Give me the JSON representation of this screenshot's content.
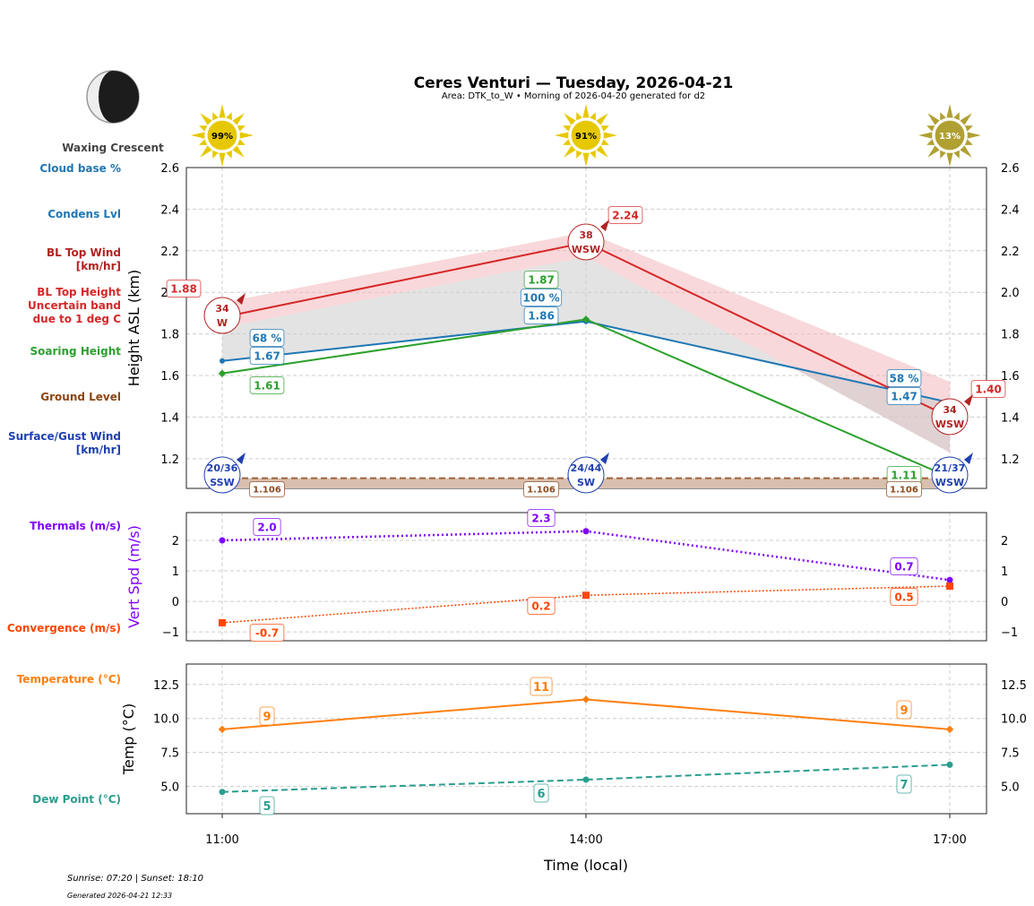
{
  "header": {
    "title": "Ceres Venturi — Tuesday, 2026-04-21",
    "subtitle": "Area: DTK_to_W • Morning of 2026-04-20 generated for d2",
    "moon_phase": "Waxing Crescent"
  },
  "suns": [
    {
      "time": "11:00",
      "label": "99%",
      "color": "#e6c800"
    },
    {
      "time": "14:00",
      "label": "91%",
      "color": "#e6c800"
    },
    {
      "time": "17:00",
      "label": "13%",
      "color": "#b0a032"
    }
  ],
  "left_labels": {
    "cloud_base": "Cloud base %",
    "condens": "Condens Lvl",
    "bl_wind": "BL Top Wind\n[km/hr]",
    "bl_height": "BL Top Height\nUncertain band\ndue to 1 deg C",
    "soaring": "Soaring Height",
    "ground": "Ground Level",
    "surface_wind": "Surface/Gust Wind\n[km/hr]",
    "thermals": "Thermals (m/s)",
    "convergence": "Convergence (m/s)",
    "temperature": "Temperature (°C)",
    "dewpoint": "Dew Point (°C)"
  },
  "footer": {
    "sun_times": "Sunrise: 07:20 | Sunset: 18:10",
    "generated": "Generated 2026-04-21 12:33"
  },
  "colors": {
    "bl_top": "#d62728",
    "band": "#f2b8bb",
    "condens": "#1f77b4",
    "soaring": "#2ca02c",
    "ground": "#8c4a1e",
    "surface_wind": "#1f3fb0",
    "thermals": "#7f00ff",
    "convergence": "#ff4500",
    "temperature": "#ff7f0e",
    "dewpoint": "#2a9d8f"
  },
  "chart_data": [
    {
      "type": "line",
      "ylabel": "Height ASL (km)",
      "ylim": [
        1.057,
        2.6
      ],
      "yticks": [
        "1.2",
        "1.4",
        "1.6",
        "1.8",
        "2.0",
        "2.2",
        "2.4",
        "2.6"
      ],
      "x": [
        "11:00",
        "14:00",
        "17:00"
      ],
      "grid": true,
      "series": [
        {
          "key": "bl_top",
          "values": [
            1.88,
            2.24,
            1.4
          ],
          "labels": [
            "1.88",
            "2.24",
            "1.40"
          ]
        },
        {
          "key": "band_upper",
          "values": [
            1.95,
            2.29,
            1.57
          ]
        },
        {
          "key": "band_lower",
          "values": [
            1.83,
            2.17,
            1.23
          ]
        },
        {
          "key": "condens",
          "values": [
            1.67,
            1.86,
            1.47
          ],
          "labels": [
            "1.67",
            "1.86",
            "1.47"
          ],
          "cloud_pct": [
            "68 %",
            "100 %",
            "58 %"
          ]
        },
        {
          "key": "soaring",
          "values": [
            1.61,
            1.87,
            1.11
          ],
          "labels": [
            "1.61",
            "1.87",
            "1.11"
          ]
        },
        {
          "key": "ground",
          "values": [
            1.106,
            1.106,
            1.106
          ],
          "labels": [
            "1.106",
            "1.106",
            "1.106"
          ]
        }
      ],
      "bl_wind": [
        {
          "speed": "34",
          "dir": "W"
        },
        {
          "speed": "38",
          "dir": "WSW"
        },
        {
          "speed": "34",
          "dir": "WSW"
        }
      ],
      "surface_wind": [
        {
          "speed": "20/36",
          "dir": "SSW"
        },
        {
          "speed": "24/44",
          "dir": "SW"
        },
        {
          "speed": "21/37",
          "dir": "WSW"
        }
      ]
    },
    {
      "type": "line",
      "ylabel": "Vert Spd (m/s)",
      "ylim": [
        -1.29,
        2.91
      ],
      "yticks": [
        "−1",
        "0",
        "1",
        "2"
      ],
      "x": [
        "11:00",
        "14:00",
        "17:00"
      ],
      "series": [
        {
          "key": "thermals",
          "values": [
            2.0,
            2.3,
            0.7
          ],
          "labels": [
            "2.0",
            "2.3",
            "0.7"
          ]
        },
        {
          "key": "convergence",
          "values": [
            -0.7,
            0.2,
            0.5
          ],
          "labels": [
            "-0.7",
            "0.2",
            "0.5"
          ]
        }
      ]
    },
    {
      "type": "line",
      "ylabel": "Temp (°C)",
      "xlabel": "Time (local)",
      "ylim": [
        3.0,
        14.0
      ],
      "yticks": [
        "5.0",
        "7.5",
        "10.0",
        "12.5"
      ],
      "x": [
        "11:00",
        "14:00",
        "17:00"
      ],
      "series": [
        {
          "key": "temperature",
          "values": [
            9.2,
            11.4,
            9.2
          ],
          "labels": [
            "9",
            "11",
            "9"
          ]
        },
        {
          "key": "dewpoint",
          "values": [
            4.6,
            5.5,
            6.6
          ],
          "labels": [
            "5",
            "6",
            "7"
          ]
        }
      ]
    }
  ]
}
